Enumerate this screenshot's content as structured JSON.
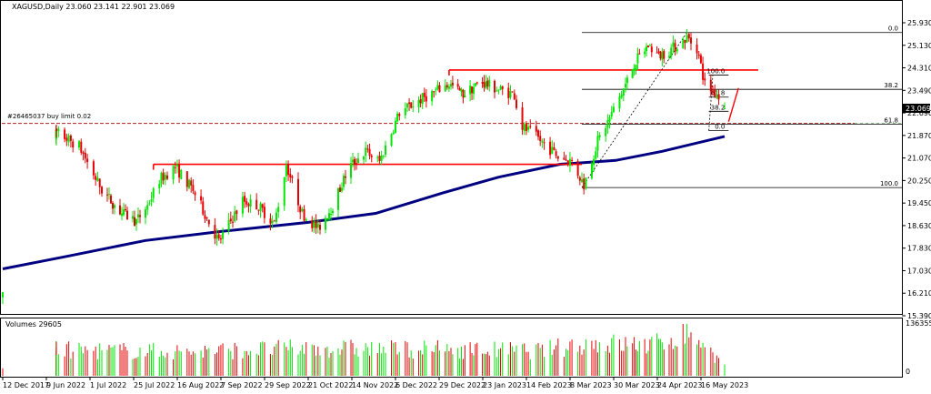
{
  "header": {
    "symbol_line": "XAGUSD,Daily  23.060 23.141 22.901 23.069"
  },
  "order_label": "#26465037 buy limit 0.02",
  "volume_panel": {
    "title": "Volumes 29605",
    "max_label": "136355",
    "zero_label": "0"
  },
  "colors": {
    "bull_candle": "#00e600",
    "bear_candle": "#e60000",
    "moving_average": "#000080",
    "resistance_lines": "#ff0000",
    "order_line": "#b22222",
    "fibo_lines": "#000000",
    "grid_border": "#000000",
    "last_price_bg": "#000000"
  },
  "chart_data": {
    "type": "candlestick",
    "price_axis": {
      "ylim": [
        15.39,
        26.73
      ],
      "ticks": [
        "25.930",
        "25.130",
        "24.310",
        "23.490",
        "22.690",
        "21.870",
        "21.070",
        "20.250",
        "19.450",
        "18.630",
        "17.830",
        "17.030",
        "16.210",
        "15.390"
      ],
      "last_price": "23.069"
    },
    "x_axis": {
      "tick_labels": [
        "12 Dec 2017",
        "9 Jun 2022",
        "1 Jul 2022",
        "25 Jul 2022",
        "16 Aug 2022",
        "7 Sep 2022",
        "29 Sep 2022",
        "21 Oct 2022",
        "14 Nov 2022",
        "6 Dec 2022",
        "29 Dec 2022",
        "23 Jan 2023",
        "14 Feb 2023",
        "8 Mar 2023",
        "30 Mar 2023",
        "24 Apr 2023",
        "16 May 2023"
      ]
    },
    "price_series": {
      "name": "XAGUSD",
      "close_anchors": [
        {
          "date": "2022-06-01",
          "close": 22.2
        },
        {
          "date": "2022-06-10",
          "close": 22.1
        },
        {
          "date": "2022-06-20",
          "close": 21.6
        },
        {
          "date": "2022-07-01",
          "close": 19.9
        },
        {
          "date": "2022-07-12",
          "close": 19.0
        },
        {
          "date": "2022-07-20",
          "close": 18.7
        },
        {
          "date": "2022-07-26",
          "close": 19.3
        },
        {
          "date": "2022-08-01",
          "close": 20.3
        },
        {
          "date": "2022-08-09",
          "close": 20.8
        },
        {
          "date": "2022-08-18",
          "close": 19.9
        },
        {
          "date": "2022-08-31",
          "close": 17.9
        },
        {
          "date": "2022-09-12",
          "close": 19.5
        },
        {
          "date": "2022-09-20",
          "close": 19.3
        },
        {
          "date": "2022-09-28",
          "close": 18.6
        },
        {
          "date": "2022-10-04",
          "close": 20.9
        },
        {
          "date": "2022-10-12",
          "close": 19.0
        },
        {
          "date": "2022-10-20",
          "close": 18.4
        },
        {
          "date": "2022-10-28",
          "close": 19.3
        },
        {
          "date": "2022-11-06",
          "close": 20.8
        },
        {
          "date": "2022-11-15",
          "close": 21.4
        },
        {
          "date": "2022-11-22",
          "close": 21.0
        },
        {
          "date": "2022-12-02",
          "close": 22.9
        },
        {
          "date": "2022-12-15",
          "close": 23.5
        },
        {
          "date": "2022-12-28",
          "close": 24.0
        },
        {
          "date": "2023-01-05",
          "close": 23.6
        },
        {
          "date": "2023-01-15",
          "close": 24.1
        },
        {
          "date": "2023-01-25",
          "close": 23.8
        },
        {
          "date": "2023-02-02",
          "close": 23.6
        },
        {
          "date": "2023-02-05",
          "close": 22.4
        },
        {
          "date": "2023-02-14",
          "close": 21.9
        },
        {
          "date": "2023-02-24",
          "close": 21.2
        },
        {
          "date": "2023-03-03",
          "close": 21.0
        },
        {
          "date": "2023-03-09",
          "close": 20.1
        },
        {
          "date": "2023-03-16",
          "close": 21.8
        },
        {
          "date": "2023-03-24",
          "close": 23.0
        },
        {
          "date": "2023-04-04",
          "close": 24.8
        },
        {
          "date": "2023-04-12",
          "close": 25.5
        },
        {
          "date": "2023-04-18",
          "close": 25.1
        },
        {
          "date": "2023-04-24",
          "close": 25.3
        },
        {
          "date": "2023-05-03",
          "close": 25.8
        },
        {
          "date": "2023-05-08",
          "close": 25.4
        },
        {
          "date": "2023-05-12",
          "close": 24.0
        },
        {
          "date": "2023-05-18",
          "close": 23.6
        },
        {
          "date": "2023-05-22",
          "close": 23.07
        }
      ]
    },
    "moving_average": {
      "points": [
        {
          "date": "2017-12-12",
          "value": 16.85
        },
        {
          "date": "2022-06-15",
          "value": 17.35
        },
        {
          "date": "2022-07-25",
          "value": 17.95
        },
        {
          "date": "2022-09-01",
          "value": 18.3
        },
        {
          "date": "2022-10-15",
          "value": 18.65
        },
        {
          "date": "2022-11-20",
          "value": 19.0
        },
        {
          "date": "2022-12-25",
          "value": 19.8
        },
        {
          "date": "2023-01-25",
          "value": 20.4
        },
        {
          "date": "2023-02-25",
          "value": 20.9
        },
        {
          "date": "2023-03-25",
          "value": 21.05
        },
        {
          "date": "2023-04-20",
          "value": 21.4
        },
        {
          "date": "2023-05-22",
          "value": 21.98
        }
      ]
    },
    "resistance_lines": [
      {
        "from": "2022-07-29",
        "to": "2023-03-08",
        "price": 20.9
      },
      {
        "from": "2022-12-28",
        "to": "2023-06-08",
        "price": 24.55
      }
    ],
    "order_level": {
      "price": 22.48
    },
    "fibo_sets": [
      {
        "from_date": "2023-03-08",
        "to_date": "2023-05-25",
        "levels": [
          {
            "label": "0.0",
            "price": 26.0
          },
          {
            "label": "38.2",
            "price": 23.8
          },
          {
            "label": "61.8",
            "price": 22.45
          },
          {
            "label": "100.0",
            "price": 20.0
          }
        ]
      },
      {
        "from_date": "2023-05-14",
        "to_date": "2023-05-24",
        "levels": [
          {
            "label": "100.0",
            "price": 24.35
          },
          {
            "label": "61.8",
            "price": 23.5
          },
          {
            "label": "38.2",
            "price": 22.95
          },
          {
            "label": "0.0",
            "price": 22.2
          }
        ]
      }
    ],
    "volume_series": {
      "ylim": [
        0,
        136355
      ],
      "level_anchors": [
        {
          "date": "2017-12-12",
          "value": 20000
        },
        {
          "date": "2022-06-01",
          "value": 80000
        },
        {
          "date": "2022-08-15",
          "value": 75000
        },
        {
          "date": "2022-10-15",
          "value": 85000
        },
        {
          "date": "2022-12-15",
          "value": 82000
        },
        {
          "date": "2023-02-15",
          "value": 78000
        },
        {
          "date": "2023-03-10",
          "value": 100000
        },
        {
          "date": "2023-04-15",
          "value": 95000
        },
        {
          "date": "2023-05-05",
          "value": 136355
        },
        {
          "date": "2023-05-22",
          "value": 29605
        }
      ]
    }
  }
}
